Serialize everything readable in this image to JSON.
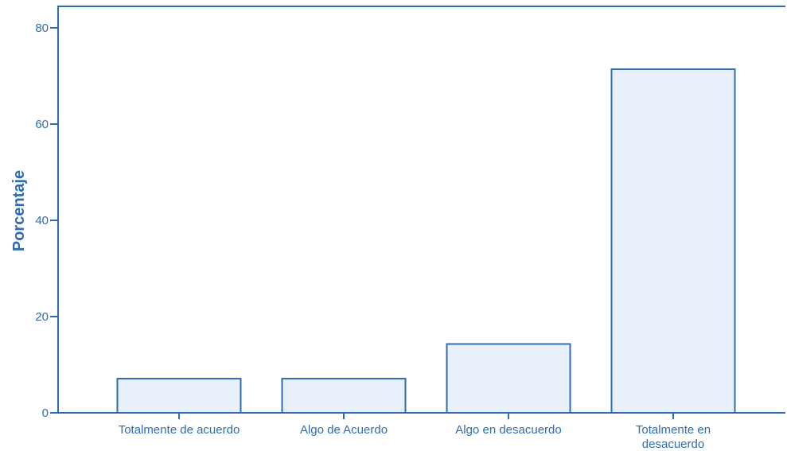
{
  "chart_data": {
    "type": "bar",
    "categories": [
      [
        "Totalmente de acuerdo"
      ],
      [
        "Algo de Acuerdo"
      ],
      [
        "Algo en desacuerdo"
      ],
      [
        "Totalmente en",
        "desacuerdo"
      ]
    ],
    "values": [
      7.1,
      7.1,
      14.3,
      71.4
    ],
    "title": "",
    "xlabel": "",
    "ylabel": "Porcentaje",
    "ylim": [
      0,
      80
    ],
    "yticks": [
      0,
      20,
      40,
      60,
      80
    ],
    "grid": false,
    "colors": {
      "axis": "#2f6cb3",
      "bar_fill": "#e8f1fb",
      "bar_stroke": "#2f6cb3",
      "text": "#2f6cb3"
    }
  }
}
